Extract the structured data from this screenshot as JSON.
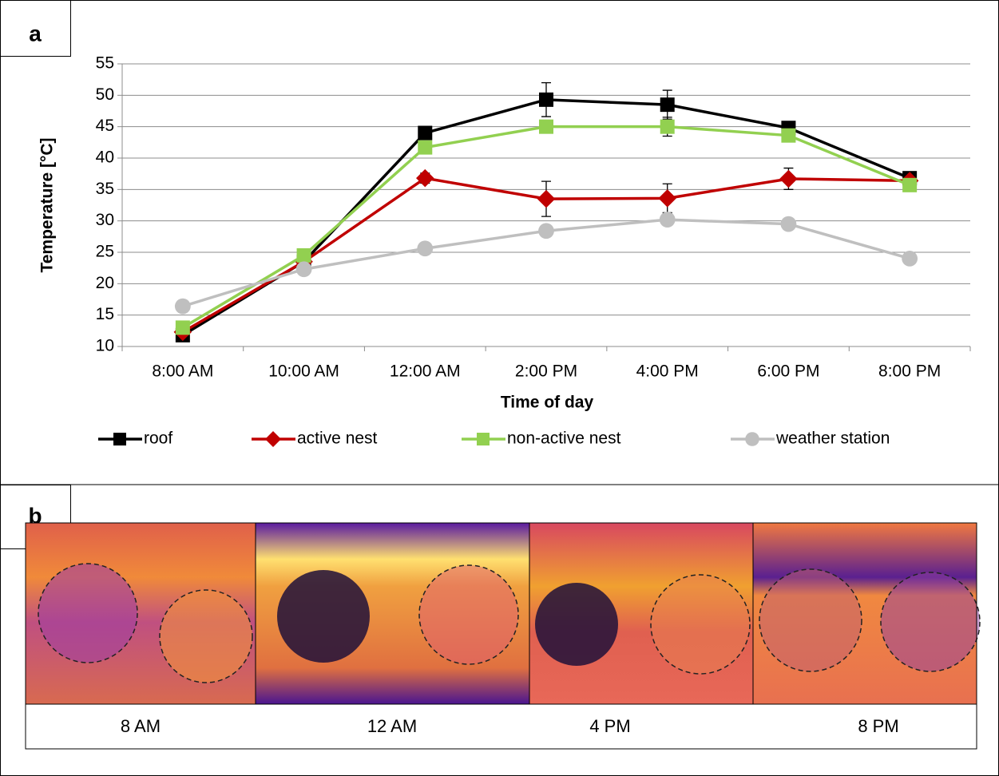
{
  "panels": [
    "a",
    "b"
  ],
  "chart_data": {
    "type": "line",
    "xlabel": "Time of day",
    "ylabel": "Temperature [°C]",
    "categories": [
      "8:00 AM",
      "10:00 AM",
      "12:00 AM",
      "2:00 PM",
      "4:00 PM",
      "6:00 PM",
      "8:00 PM"
    ],
    "series": [
      {
        "name": "roof",
        "color": "#000000",
        "marker": "square",
        "values": [
          11.8,
          23.5,
          44,
          49.3,
          48.5,
          44.8,
          36.8
        ],
        "errors": [
          0.5,
          0.5,
          0.8,
          2.7,
          2.3,
          0.6,
          0.5
        ]
      },
      {
        "name": "active nest",
        "color": "#c00000",
        "marker": "diamond",
        "values": [
          12.3,
          23.5,
          36.8,
          33.5,
          33.6,
          36.7,
          36.4
        ],
        "errors": [
          0.6,
          0.6,
          0.8,
          2.8,
          2.3,
          1.7,
          0.6
        ]
      },
      {
        "name": "non-active nest",
        "color": "#92d050",
        "marker": "square",
        "values": [
          13,
          24.5,
          41.7,
          45,
          45,
          43.6,
          35.7
        ],
        "errors": [
          0.4,
          0.5,
          0.7,
          0.6,
          1.5,
          0.5,
          0.5
        ]
      },
      {
        "name": "weather station",
        "color": "#bfbfbf",
        "marker": "circle",
        "values": [
          16.4,
          22.3,
          25.6,
          28.4,
          30.2,
          29.5,
          24
        ]
      }
    ],
    "ylim": [
      10,
      55
    ],
    "yticks": [
      10,
      15,
      20,
      25,
      30,
      35,
      40,
      45,
      50,
      55
    ],
    "grid": true,
    "legend": "bottom"
  },
  "images": {
    "captions": [
      "8 AM",
      "12 AM",
      "4 PM",
      "8 PM"
    ]
  }
}
